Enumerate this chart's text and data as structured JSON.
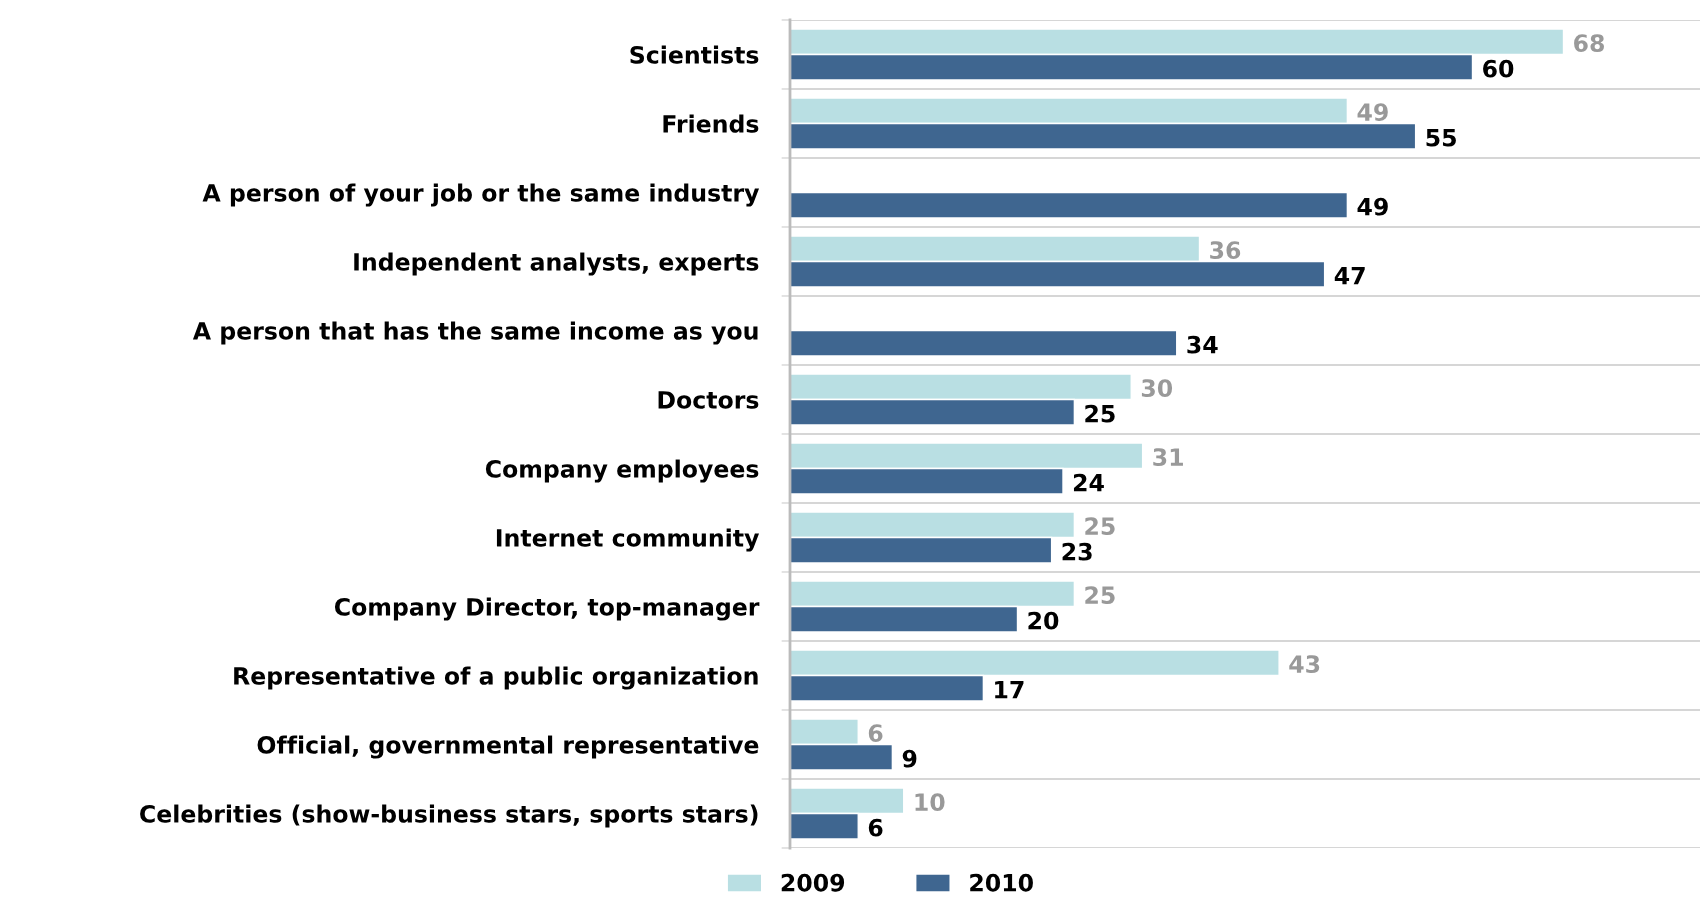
{
  "chart_data": {
    "type": "bar",
    "orientation": "horizontal",
    "categories": [
      "Scientists",
      "Friends",
      "A person of your job or the same industry",
      "Independent analysts, experts",
      "A person that has the same income as you",
      "Doctors",
      "Company employees",
      "Internet community",
      "Company Director, top-manager",
      "Representative of a public organization",
      "Official, governmental representative",
      "Celebrities (show-business stars, sports stars)"
    ],
    "series": [
      {
        "name": "2009",
        "color": "#b9dfe3",
        "values": [
          68,
          49,
          null,
          36,
          null,
          30,
          31,
          25,
          25,
          43,
          6,
          10
        ]
      },
      {
        "name": "2010",
        "color": "#3f6690",
        "values": [
          60,
          55,
          49,
          47,
          34,
          25,
          24,
          23,
          20,
          17,
          9,
          6
        ]
      }
    ],
    "xlim": [
      0,
      80
    ],
    "tick_labels": "y",
    "data_labels": true,
    "grid": "y",
    "legend": "bottom"
  }
}
